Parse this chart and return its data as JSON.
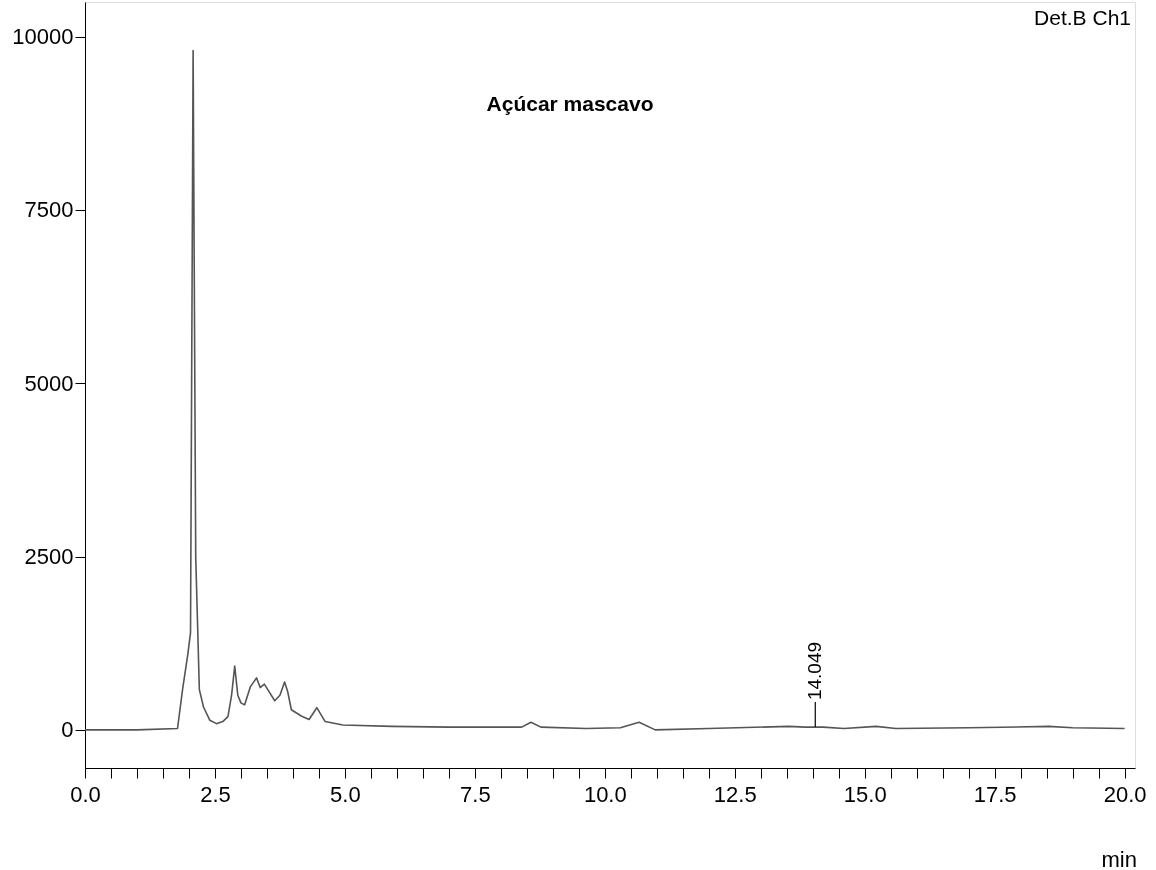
{
  "chart_data": {
    "type": "line",
    "title": "Açúcar mascavo",
    "xlabel": "min",
    "x": [
      0,
      1.0,
      1.78,
      1.88,
      1.98,
      2.03,
      2.08,
      2.13,
      2.2,
      2.28,
      2.4,
      2.53,
      2.65,
      2.75,
      2.82,
      2.88,
      2.94,
      3.0,
      3.07,
      3.18,
      3.3,
      3.37,
      3.45,
      3.55,
      3.65,
      3.75,
      3.84,
      3.9,
      3.97,
      4.16,
      4.31,
      4.46,
      4.62,
      4.96,
      5.9,
      7.0,
      8.4,
      8.58,
      8.77,
      9.64,
      10.3,
      10.66,
      10.97,
      12.0,
      13.54,
      13.86,
      14.2,
      14.6,
      15.22,
      15.6,
      17.0,
      18.54,
      19.0,
      20.0
    ],
    "series": [
      {
        "color": "#555555",
        "values": [
          0,
          0,
          20,
          600,
          1100,
          1400,
          9800,
          2500,
          580,
          330,
          140,
          90,
          120,
          190,
          500,
          920,
          500,
          390,
          360,
          620,
          750,
          610,
          660,
          540,
          420,
          500,
          690,
          550,
          290,
          200,
          150,
          320,
          120,
          70,
          50,
          40,
          40,
          110,
          40,
          20,
          30,
          110,
          0,
          20,
          50,
          40,
          40,
          20,
          50,
          20,
          30,
          50,
          30,
          20
        ]
      }
    ],
    "xlim": [
      0,
      20.2
    ],
    "ylim": [
      -550,
      10500
    ],
    "xticks": [
      {
        "value": 0,
        "label": "0.0"
      },
      {
        "value": 0.5,
        "label": null
      },
      {
        "value": 1,
        "label": null
      },
      {
        "value": 1.5,
        "label": null
      },
      {
        "value": 2,
        "label": null
      },
      {
        "value": 2.5,
        "label": "2.5"
      },
      {
        "value": 3,
        "label": null
      },
      {
        "value": 3.5,
        "label": null
      },
      {
        "value": 4,
        "label": null
      },
      {
        "value": 4.5,
        "label": null
      },
      {
        "value": 5,
        "label": "5.0"
      },
      {
        "value": 5.5,
        "label": null
      },
      {
        "value": 6,
        "label": null
      },
      {
        "value": 6.5,
        "label": null
      },
      {
        "value": 7,
        "label": null
      },
      {
        "value": 7.5,
        "label": "7.5"
      },
      {
        "value": 8,
        "label": null
      },
      {
        "value": 8.5,
        "label": null
      },
      {
        "value": 9,
        "label": null
      },
      {
        "value": 9.5,
        "label": null
      },
      {
        "value": 10,
        "label": "10.0"
      },
      {
        "value": 10.5,
        "label": null
      },
      {
        "value": 11,
        "label": null
      },
      {
        "value": 11.5,
        "label": null
      },
      {
        "value": 12,
        "label": null
      },
      {
        "value": 12.5,
        "label": "12.5"
      },
      {
        "value": 13,
        "label": null
      },
      {
        "value": 13.5,
        "label": null
      },
      {
        "value": 14,
        "label": null
      },
      {
        "value": 14.5,
        "label": null
      },
      {
        "value": 15,
        "label": "15.0"
      },
      {
        "value": 15.5,
        "label": null
      },
      {
        "value": 16,
        "label": null
      },
      {
        "value": 16.5,
        "label": null
      },
      {
        "value": 17,
        "label": null
      },
      {
        "value": 17.5,
        "label": "17.5"
      },
      {
        "value": 18,
        "label": null
      },
      {
        "value": 18.5,
        "label": null
      },
      {
        "value": 19,
        "label": null
      },
      {
        "value": 19.5,
        "label": null
      },
      {
        "value": 20,
        "label": "20.0"
      }
    ],
    "yticks": [
      0,
      2500,
      5000,
      7500,
      10000
    ],
    "grid": false,
    "marker": "none",
    "line_style": "solid",
    "annotations": [
      "Det.B Ch1",
      {
        "text": "14.049",
        "x": 14.049,
        "y": 40
      }
    ]
  }
}
